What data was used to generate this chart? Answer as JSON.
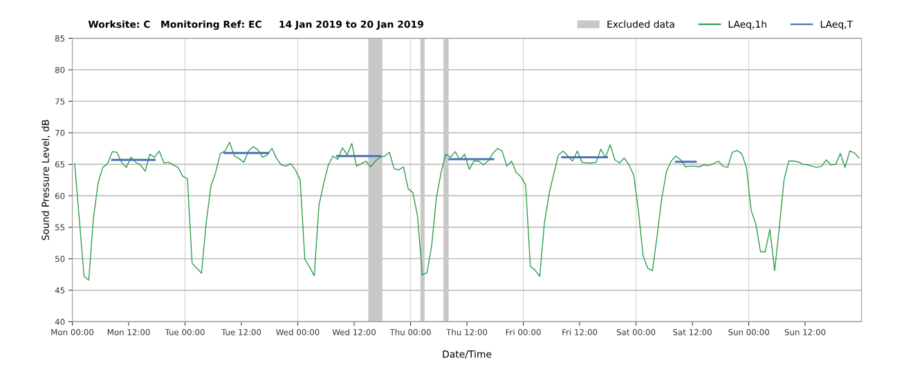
{
  "chart_data": {
    "type": "line",
    "title": "Worksite: C   Monitoring Ref: EC     14 Jan 2019 to 20 Jan 2019",
    "xlabel": "Date/Time",
    "ylabel": "Sound Pressure Level, dB",
    "xlim": [
      "2019-01-14T00:00",
      "2019-01-21T00:00"
    ],
    "xticks": [
      {
        "value": "2019-01-14T00:00",
        "label": "Mon 00:00"
      },
      {
        "value": "2019-01-14T12:00",
        "label": "Mon 12:00"
      },
      {
        "value": "2019-01-15T00:00",
        "label": "Tue 00:00"
      },
      {
        "value": "2019-01-15T12:00",
        "label": "Tue 12:00"
      },
      {
        "value": "2019-01-16T00:00",
        "label": "Wed 00:00"
      },
      {
        "value": "2019-01-16T12:00",
        "label": "Wed 12:00"
      },
      {
        "value": "2019-01-17T00:00",
        "label": "Thu 00:00"
      },
      {
        "value": "2019-01-17T12:00",
        "label": "Thu 12:00"
      },
      {
        "value": "2019-01-18T00:00",
        "label": "Fri 00:00"
      },
      {
        "value": "2019-01-18T12:00",
        "label": "Fri 12:00"
      },
      {
        "value": "2019-01-19T00:00",
        "label": "Sat 00:00"
      },
      {
        "value": "2019-01-19T12:00",
        "label": "Sat 12:00"
      },
      {
        "value": "2019-01-20T00:00",
        "label": "Sun 00:00"
      },
      {
        "value": "2019-01-20T12:00",
        "label": "Sun 12:00"
      }
    ],
    "ylim": [
      40,
      85
    ],
    "yticks": [
      40,
      45,
      50,
      55,
      60,
      65,
      70,
      75,
      80,
      85
    ],
    "grid": "y",
    "legend": "top right",
    "marker": "none",
    "line_style": "solid",
    "bands": [
      {
        "axis": "x",
        "from": "2019-01-16T15:00",
        "to": "2019-01-16T18:00",
        "label": "Excluded data",
        "color": "#c8c8c8"
      },
      {
        "axis": "x",
        "from": "2019-01-17T02:06",
        "to": "2019-01-17T03:00",
        "color": "#c8c8c8"
      },
      {
        "axis": "x",
        "from": "2019-01-17T07:00",
        "to": "2019-01-17T08:06",
        "color": "#c8c8c8"
      }
    ],
    "ref_lines": [
      {
        "axis": "x",
        "value": "2019-01-15T00:00",
        "color": "#d9d9d9"
      },
      {
        "axis": "x",
        "value": "2019-01-16T00:00",
        "color": "#d9d9d9"
      },
      {
        "axis": "x",
        "value": "2019-01-17T00:00",
        "color": "#d9d9d9"
      },
      {
        "axis": "x",
        "value": "2019-01-18T00:00",
        "color": "#d9d9d9"
      },
      {
        "axis": "x",
        "value": "2019-01-19T00:00",
        "color": "#d9d9d9"
      },
      {
        "axis": "x",
        "value": "2019-01-20T00:00",
        "color": "#d9d9d9"
      }
    ],
    "series": [
      {
        "name": "LAeq,1h",
        "color": "#2e9e4a",
        "x": [
          "2019-01-14T00:30",
          "2019-01-14T02:30",
          "2019-01-14T03:30",
          "2019-01-14T04:30",
          "2019-01-14T05:30",
          "2019-01-14T06:30",
          "2019-01-14T07:30",
          "2019-01-14T08:30",
          "2019-01-14T09:30",
          "2019-01-14T10:30",
          "2019-01-14T11:30",
          "2019-01-14T12:30",
          "2019-01-14T13:30",
          "2019-01-14T14:30",
          "2019-01-14T15:30",
          "2019-01-14T16:30",
          "2019-01-14T17:30",
          "2019-01-14T18:30",
          "2019-01-14T19:30",
          "2019-01-14T20:30",
          "2019-01-14T21:30",
          "2019-01-14T22:30",
          "2019-01-14T23:30",
          "2019-01-15T00:30",
          "2019-01-15T01:30",
          "2019-01-15T02:30",
          "2019-01-15T03:30",
          "2019-01-15T04:30",
          "2019-01-15T05:30",
          "2019-01-15T06:30",
          "2019-01-15T07:30",
          "2019-01-15T08:30",
          "2019-01-15T09:30",
          "2019-01-15T10:30",
          "2019-01-15T11:30",
          "2019-01-15T12:30",
          "2019-01-15T13:30",
          "2019-01-15T14:30",
          "2019-01-15T15:30",
          "2019-01-15T16:30",
          "2019-01-15T17:30",
          "2019-01-15T18:30",
          "2019-01-15T19:30",
          "2019-01-15T20:30",
          "2019-01-15T21:30",
          "2019-01-15T22:30",
          "2019-01-15T23:30",
          "2019-01-16T00:30",
          "2019-01-16T01:30",
          "2019-01-16T02:30",
          "2019-01-16T03:30",
          "2019-01-16T04:30",
          "2019-01-16T05:30",
          "2019-01-16T06:30",
          "2019-01-16T07:30",
          "2019-01-16T08:30",
          "2019-01-16T09:30",
          "2019-01-16T10:30",
          "2019-01-16T11:30",
          "2019-01-16T12:30",
          "2019-01-16T13:30",
          "2019-01-16T14:30",
          "2019-01-16T15:30",
          "2019-01-16T16:30",
          "2019-01-16T17:30",
          "2019-01-16T18:30",
          "2019-01-16T19:30",
          "2019-01-16T20:30",
          "2019-01-16T21:30",
          "2019-01-16T22:30",
          "2019-01-16T23:30",
          "2019-01-17T00:30",
          "2019-01-17T01:30",
          "2019-01-17T02:30",
          "2019-01-17T03:30",
          "2019-01-17T04:30",
          "2019-01-17T05:30",
          "2019-01-17T06:30",
          "2019-01-17T07:30",
          "2019-01-17T08:30",
          "2019-01-17T09:30",
          "2019-01-17T10:30",
          "2019-01-17T11:30",
          "2019-01-17T12:30",
          "2019-01-17T13:30",
          "2019-01-17T14:30",
          "2019-01-17T15:30",
          "2019-01-17T16:30",
          "2019-01-17T17:30",
          "2019-01-17T18:30",
          "2019-01-17T19:30",
          "2019-01-17T20:30",
          "2019-01-17T21:30",
          "2019-01-17T22:30",
          "2019-01-17T23:30",
          "2019-01-18T00:30",
          "2019-01-18T01:30",
          "2019-01-18T02:30",
          "2019-01-18T03:30",
          "2019-01-18T04:30",
          "2019-01-18T05:30",
          "2019-01-18T06:30",
          "2019-01-18T07:30",
          "2019-01-18T08:30",
          "2019-01-18T09:30",
          "2019-01-18T10:30",
          "2019-01-18T11:30",
          "2019-01-18T12:30",
          "2019-01-18T13:30",
          "2019-01-18T14:30",
          "2019-01-18T15:30",
          "2019-01-18T16:30",
          "2019-01-18T17:30",
          "2019-01-18T18:30",
          "2019-01-18T19:30",
          "2019-01-18T20:30",
          "2019-01-18T21:30",
          "2019-01-18T22:30",
          "2019-01-18T23:30",
          "2019-01-19T00:30",
          "2019-01-19T01:30",
          "2019-01-19T02:30",
          "2019-01-19T03:30",
          "2019-01-19T04:30",
          "2019-01-19T05:30",
          "2019-01-19T06:30",
          "2019-01-19T07:30",
          "2019-01-19T08:30",
          "2019-01-19T09:30",
          "2019-01-19T10:30",
          "2019-01-19T11:30",
          "2019-01-19T12:30",
          "2019-01-19T13:30",
          "2019-01-19T14:30",
          "2019-01-19T15:30",
          "2019-01-19T16:30",
          "2019-01-19T17:30",
          "2019-01-19T18:30",
          "2019-01-19T19:30",
          "2019-01-19T20:30",
          "2019-01-19T21:30",
          "2019-01-19T22:30",
          "2019-01-19T23:30",
          "2019-01-20T00:30",
          "2019-01-20T01:30",
          "2019-01-20T02:30",
          "2019-01-20T03:30",
          "2019-01-20T04:30",
          "2019-01-20T05:30",
          "2019-01-20T06:30",
          "2019-01-20T07:30",
          "2019-01-20T08:30",
          "2019-01-20T09:30",
          "2019-01-20T10:30",
          "2019-01-20T11:30",
          "2019-01-20T12:30",
          "2019-01-20T13:30",
          "2019-01-20T14:30",
          "2019-01-20T15:30",
          "2019-01-20T16:30",
          "2019-01-20T17:30",
          "2019-01-20T18:30",
          "2019-01-20T19:30",
          "2019-01-20T20:30",
          "2019-01-20T21:30",
          "2019-01-20T22:30",
          "2019-01-20T23:30"
        ],
        "values": [
          65.1,
          47.2,
          46.6,
          56.5,
          62.1,
          64.5,
          65.1,
          67.0,
          66.9,
          65.3,
          64.5,
          66.1,
          65.3,
          64.9,
          63.9,
          66.6,
          66.1,
          67.1,
          65.2,
          65.3,
          64.9,
          64.5,
          63.1,
          62.7,
          49.3,
          48.5,
          47.7,
          55.7,
          61.5,
          63.7,
          66.7,
          67.1,
          68.5,
          66.3,
          65.9,
          65.3,
          67.1,
          67.8,
          67.3,
          66.1,
          66.5,
          67.5,
          65.9,
          64.9,
          64.7,
          65.1,
          64.1,
          62.5,
          49.9,
          48.7,
          47.3,
          58.5,
          61.9,
          64.9,
          66.3,
          65.8,
          67.6,
          66.5,
          68.3,
          64.7,
          65.1,
          65.5,
          64.6,
          65.5,
          66.1,
          66.3,
          66.9,
          64.3,
          64.1,
          64.6,
          61.1,
          60.5,
          56.7,
          47.4,
          47.8,
          52.1,
          59.7,
          63.7,
          66.6,
          66.1,
          67.0,
          65.7,
          66.6,
          64.2,
          65.5,
          65.5,
          64.9,
          65.5,
          66.7,
          67.5,
          67.1,
          64.7,
          65.5,
          63.7,
          63.0,
          61.7,
          48.8,
          48.2,
          47.2,
          55.7,
          60.3,
          63.5,
          66.5,
          67.1,
          66.3,
          65.5,
          67.1,
          65.3,
          65.2,
          65.2,
          65.3,
          67.4,
          66.1,
          68.1,
          65.7,
          65.2,
          66.0,
          64.9,
          63.3,
          57.7,
          50.5,
          48.5,
          48.1,
          53.7,
          59.7,
          63.9,
          65.5,
          66.3,
          65.7,
          64.6,
          64.7,
          64.7,
          64.6,
          64.9,
          64.8,
          65.1,
          65.5,
          64.7,
          64.5,
          66.9,
          67.2,
          66.7,
          64.5,
          57.7,
          55.5,
          51.1,
          51.1,
          54.7,
          48.1,
          54.9,
          62.5,
          65.5,
          65.5,
          65.4,
          65.0,
          64.9,
          64.7,
          64.5,
          64.7,
          65.7,
          64.9,
          65.0,
          66.7,
          64.5,
          67.1,
          66.8,
          66.0
        ]
      },
      {
        "name": "LAeq,T",
        "color": "#4a72b8",
        "x": [
          "2019-01-14T08:30",
          "2019-01-14T17:30",
          "2019-01-15T01:00",
          "2019-01-15T08:24",
          "2019-01-15T17:42",
          "2019-01-16T02:00",
          "2019-01-16T08:24",
          "2019-01-16T17:36",
          "2019-01-17T01:00",
          "2019-01-17T08:18",
          "2019-01-17T17:36",
          "2019-01-18T02:00",
          "2019-01-18T08:18",
          "2019-01-18T17:48",
          "2019-01-19T02:00",
          "2019-01-19T08:30",
          "2019-01-19T12:42"
        ],
        "values": [
          65.7,
          65.7,
          null,
          66.8,
          66.8,
          null,
          66.3,
          66.3,
          null,
          65.8,
          65.8,
          null,
          66.1,
          66.1,
          null,
          65.4,
          65.4
        ]
      }
    ]
  }
}
